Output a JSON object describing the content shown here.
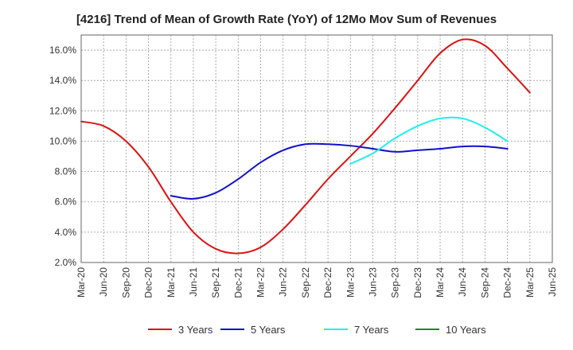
{
  "chart_data": {
    "type": "line",
    "title": "[4216]  Trend of Mean of Growth Rate (YoY) of 12Mo Mov Sum of Revenues",
    "xlabel": "",
    "ylabel": "",
    "ylim": [
      2.0,
      17.0
    ],
    "yticks": [
      2.0,
      4.0,
      6.0,
      8.0,
      10.0,
      12.0,
      14.0,
      16.0
    ],
    "ytick_labels": [
      "2.0%",
      "4.0%",
      "6.0%",
      "8.0%",
      "10.0%",
      "12.0%",
      "14.0%",
      "16.0%"
    ],
    "xtick_labels": [
      "Mar-20",
      "Jun-20",
      "Sep-20",
      "Dec-20",
      "Mar-21",
      "Jun-21",
      "Sep-21",
      "Dec-21",
      "Mar-22",
      "Jun-22",
      "Sep-22",
      "Dec-22",
      "Mar-23",
      "Jun-23",
      "Sep-23",
      "Dec-23",
      "Mar-24",
      "Jun-24",
      "Sep-24",
      "Dec-24",
      "Mar-25",
      "Jun-25"
    ],
    "grid": true,
    "legend_position": "bottom",
    "series": [
      {
        "name": "3 Years",
        "color": "#dd1111",
        "start_index": 0,
        "values": [
          11.3,
          11.0,
          10.0,
          8.3,
          6.0,
          4.0,
          2.9,
          2.6,
          3.0,
          4.2,
          5.8,
          7.5,
          9.0,
          10.5,
          12.2,
          14.0,
          15.8,
          16.7,
          16.3,
          14.8,
          13.2
        ]
      },
      {
        "name": "5 Years",
        "color": "#1111cc",
        "start_index": 4,
        "values": [
          6.4,
          6.2,
          6.6,
          7.5,
          8.6,
          9.4,
          9.8,
          9.8,
          9.7,
          9.5,
          9.3,
          9.4,
          9.5,
          9.65,
          9.65,
          9.5
        ]
      },
      {
        "name": "7 Years",
        "color": "#22eeee",
        "start_index": 12,
        "values": [
          8.5,
          9.2,
          10.2,
          11.0,
          11.5,
          11.5,
          10.9,
          10.0
        ]
      },
      {
        "name": "10 Years",
        "color": "#228822",
        "start_index": 0,
        "values": []
      }
    ]
  }
}
